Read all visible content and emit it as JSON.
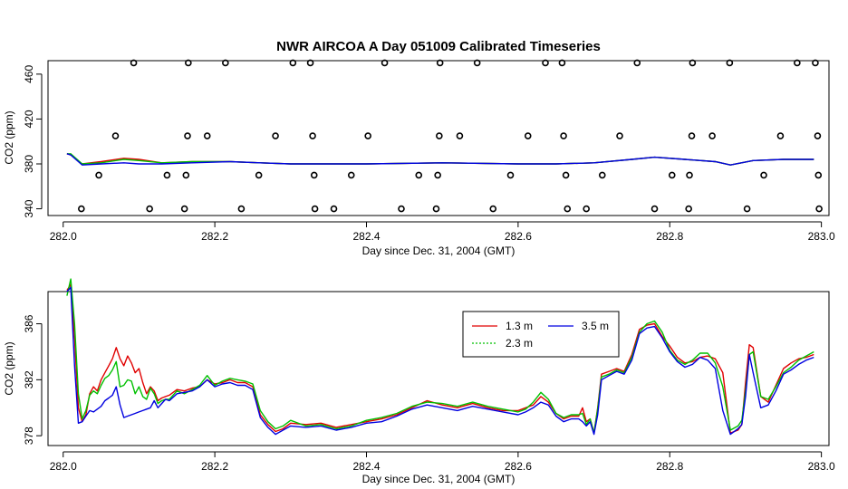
{
  "chart_data": [
    {
      "type": "scatter",
      "title": "NWR AIRCOA A  Day 051009  Calibrated Timeseries",
      "xlabel": "Day since Dec. 31, 2004 (GMT)",
      "ylabel": "CO2 (ppm)",
      "xlim": [
        281.98,
        283.01
      ],
      "ylim": [
        334,
        472
      ],
      "xticks": [
        282.0,
        282.2,
        282.4,
        282.6,
        282.8,
        283.0
      ],
      "xtick_labels": [
        "282.0",
        "282.2",
        "282.4",
        "282.6",
        "282.8",
        "283.0"
      ],
      "yticks": [
        340,
        380,
        420,
        460
      ],
      "ytick_labels": [
        "340",
        "380",
        "420",
        "460"
      ],
      "grid": false,
      "points": [
        {
          "x": 282.093,
          "y": 470
        },
        {
          "x": 282.165,
          "y": 470
        },
        {
          "x": 282.214,
          "y": 470
        },
        {
          "x": 282.303,
          "y": 470
        },
        {
          "x": 282.326,
          "y": 470
        },
        {
          "x": 282.424,
          "y": 470
        },
        {
          "x": 282.497,
          "y": 470
        },
        {
          "x": 282.546,
          "y": 470
        },
        {
          "x": 282.636,
          "y": 470
        },
        {
          "x": 282.658,
          "y": 470
        },
        {
          "x": 282.757,
          "y": 470
        },
        {
          "x": 282.83,
          "y": 470
        },
        {
          "x": 282.879,
          "y": 470
        },
        {
          "x": 282.968,
          "y": 470
        },
        {
          "x": 282.992,
          "y": 470
        },
        {
          "x": 282.069,
          "y": 405
        },
        {
          "x": 282.164,
          "y": 405
        },
        {
          "x": 282.19,
          "y": 405
        },
        {
          "x": 282.28,
          "y": 405
        },
        {
          "x": 282.329,
          "y": 405
        },
        {
          "x": 282.402,
          "y": 405
        },
        {
          "x": 282.496,
          "y": 405
        },
        {
          "x": 282.523,
          "y": 405
        },
        {
          "x": 282.613,
          "y": 405
        },
        {
          "x": 282.66,
          "y": 405
        },
        {
          "x": 282.734,
          "y": 405
        },
        {
          "x": 282.829,
          "y": 405
        },
        {
          "x": 282.856,
          "y": 405
        },
        {
          "x": 282.946,
          "y": 405
        },
        {
          "x": 282.995,
          "y": 405
        },
        {
          "x": 282.047,
          "y": 370
        },
        {
          "x": 282.137,
          "y": 370
        },
        {
          "x": 282.162,
          "y": 370
        },
        {
          "x": 282.258,
          "y": 370
        },
        {
          "x": 282.331,
          "y": 370
        },
        {
          "x": 282.38,
          "y": 370
        },
        {
          "x": 282.469,
          "y": 370
        },
        {
          "x": 282.494,
          "y": 370
        },
        {
          "x": 282.59,
          "y": 370
        },
        {
          "x": 282.663,
          "y": 370
        },
        {
          "x": 282.711,
          "y": 370
        },
        {
          "x": 282.803,
          "y": 370
        },
        {
          "x": 282.826,
          "y": 370
        },
        {
          "x": 282.924,
          "y": 370
        },
        {
          "x": 282.996,
          "y": 370
        },
        {
          "x": 282.024,
          "y": 340
        },
        {
          "x": 282.114,
          "y": 340
        },
        {
          "x": 282.16,
          "y": 340
        },
        {
          "x": 282.235,
          "y": 340
        },
        {
          "x": 282.332,
          "y": 340
        },
        {
          "x": 282.357,
          "y": 340
        },
        {
          "x": 282.446,
          "y": 340
        },
        {
          "x": 282.492,
          "y": 340
        },
        {
          "x": 282.567,
          "y": 340
        },
        {
          "x": 282.665,
          "y": 340
        },
        {
          "x": 282.69,
          "y": 340
        },
        {
          "x": 282.78,
          "y": 340
        },
        {
          "x": 282.825,
          "y": 340
        },
        {
          "x": 282.902,
          "y": 340
        },
        {
          "x": 282.997,
          "y": 340
        }
      ],
      "series": [
        {
          "color": "#e00000",
          "x": [
            282.005,
            282.01,
            282.025,
            282.05,
            282.08,
            282.1,
            282.13,
            282.17,
            282.22,
            282.26,
            282.3,
            282.4,
            282.5,
            282.6,
            282.65,
            282.7,
            282.75,
            282.78,
            282.82,
            282.86,
            282.88,
            282.91,
            282.95,
            282.99
          ],
          "values": [
            389,
            388,
            380,
            382,
            385,
            384,
            381,
            382,
            382,
            381,
            380,
            380,
            381,
            380,
            380,
            381,
            384,
            386,
            384,
            382,
            379,
            383,
            384,
            384
          ]
        },
        {
          "color": "#00c000",
          "x": [
            282.005,
            282.01,
            282.025,
            282.05,
            282.08,
            282.1,
            282.13,
            282.17,
            282.22,
            282.26,
            282.3,
            282.4,
            282.5,
            282.6,
            282.65,
            282.7,
            282.75,
            282.78,
            282.82,
            282.86,
            282.88,
            282.91,
            282.95,
            282.99
          ],
          "values": [
            389,
            389,
            380,
            381,
            384,
            383,
            381,
            382,
            382,
            381,
            380,
            380,
            381,
            380,
            380,
            381,
            384,
            386,
            384,
            382,
            379,
            383,
            384,
            384
          ]
        },
        {
          "color": "#0000e0",
          "x": [
            282.005,
            282.01,
            282.025,
            282.05,
            282.08,
            282.1,
            282.13,
            282.17,
            282.22,
            282.26,
            282.3,
            282.4,
            282.5,
            282.6,
            282.65,
            282.7,
            282.75,
            282.78,
            282.82,
            282.86,
            282.88,
            282.91,
            282.95,
            282.99
          ],
          "values": [
            389,
            388,
            379,
            380,
            381,
            380,
            380,
            381,
            382,
            381,
            380,
            380,
            381,
            380,
            380,
            381,
            384,
            386,
            384,
            382,
            379,
            383,
            384,
            384
          ]
        }
      ]
    },
    {
      "type": "line",
      "xlabel": "Day since Dec. 31, 2004 (GMT)",
      "ylabel": "CO2 (ppm)",
      "xlim": [
        281.98,
        283.01
      ],
      "ylim": [
        377.3,
        388.3
      ],
      "xticks": [
        282.0,
        282.2,
        282.4,
        282.6,
        282.8,
        283.0
      ],
      "xtick_labels": [
        "282.0",
        "282.2",
        "282.4",
        "282.6",
        "282.8",
        "283.0"
      ],
      "yticks": [
        378,
        382,
        386
      ],
      "ytick_labels": [
        "378",
        "382",
        "386"
      ],
      "grid": false,
      "legend_position": "top-right",
      "x": [
        282.005,
        282.01,
        282.015,
        282.02,
        282.025,
        282.03,
        282.035,
        282.04,
        282.045,
        282.05,
        282.055,
        282.06,
        282.065,
        282.07,
        282.075,
        282.08,
        282.085,
        282.09,
        282.095,
        282.1,
        282.105,
        282.11,
        282.115,
        282.12,
        282.125,
        282.13,
        282.135,
        282.14,
        282.15,
        282.16,
        282.17,
        282.18,
        282.19,
        282.2,
        282.21,
        282.22,
        282.23,
        282.24,
        282.25,
        282.26,
        282.27,
        282.28,
        282.29,
        282.3,
        282.32,
        282.34,
        282.36,
        282.38,
        282.4,
        282.42,
        282.44,
        282.46,
        282.48,
        282.5,
        282.52,
        282.54,
        282.56,
        282.58,
        282.6,
        282.61,
        282.62,
        282.63,
        282.64,
        282.65,
        282.66,
        282.67,
        282.68,
        282.685,
        282.69,
        282.695,
        282.7,
        282.705,
        282.71,
        282.72,
        282.73,
        282.74,
        282.75,
        282.76,
        282.77,
        282.78,
        282.79,
        282.8,
        282.81,
        282.82,
        282.83,
        282.84,
        282.85,
        282.86,
        282.87,
        282.88,
        282.89,
        282.895,
        282.9,
        282.905,
        282.91,
        282.92,
        282.93,
        282.94,
        282.95,
        282.96,
        282.97,
        282.98,
        282.99
      ],
      "series": [
        {
          "name": "1.3 m",
          "color": "#e00000",
          "values": [
            388.4,
            388.8,
            385.0,
            380.0,
            379.0,
            379.5,
            381.0,
            381.5,
            381.2,
            382.0,
            382.5,
            383.0,
            383.5,
            384.3,
            383.5,
            383.0,
            383.7,
            383.2,
            382.5,
            382.8,
            381.8,
            381.0,
            381.5,
            381.2,
            380.5,
            380.7,
            380.8,
            380.9,
            381.3,
            381.2,
            381.4,
            381.5,
            382.0,
            381.7,
            381.8,
            382.0,
            381.8,
            381.8,
            381.5,
            379.5,
            378.8,
            378.3,
            378.5,
            378.9,
            378.8,
            378.9,
            378.6,
            378.8,
            379.0,
            379.2,
            379.5,
            380.0,
            380.5,
            380.2,
            380.0,
            380.3,
            380.0,
            379.8,
            379.8,
            380.0,
            380.2,
            380.8,
            380.4,
            379.6,
            379.2,
            379.4,
            379.4,
            380.0,
            379.0,
            379.2,
            378.2,
            380.0,
            382.4,
            382.6,
            382.8,
            382.6,
            383.8,
            385.6,
            385.9,
            386.0,
            385.1,
            384.4,
            383.6,
            383.2,
            383.3,
            383.6,
            383.7,
            383.5,
            382.5,
            378.2,
            378.4,
            378.8,
            381.8,
            384.5,
            384.3,
            380.8,
            380.4,
            381.6,
            382.8,
            383.2,
            383.5,
            383.6,
            383.8
          ]
        },
        {
          "name": "2.3 m",
          "color": "#00c000",
          "values": [
            388.0,
            389.2,
            386.0,
            381.0,
            379.2,
            379.8,
            380.9,
            381.2,
            381.0,
            381.6,
            382.1,
            382.3,
            382.7,
            383.3,
            381.5,
            381.6,
            382.0,
            381.9,
            381.0,
            381.5,
            380.8,
            380.6,
            381.4,
            381.0,
            380.3,
            380.5,
            380.6,
            380.6,
            381.2,
            381.0,
            381.3,
            381.6,
            382.3,
            381.6,
            381.9,
            382.1,
            382.0,
            381.9,
            381.7,
            379.8,
            379.0,
            378.5,
            378.7,
            379.1,
            378.7,
            378.8,
            378.5,
            378.7,
            379.1,
            379.3,
            379.6,
            380.1,
            380.4,
            380.3,
            380.1,
            380.4,
            380.1,
            379.9,
            379.7,
            379.9,
            380.4,
            381.1,
            380.6,
            379.6,
            379.3,
            379.5,
            379.5,
            379.6,
            378.8,
            379.2,
            378.2,
            379.9,
            382.2,
            382.4,
            382.7,
            382.5,
            383.6,
            385.4,
            386.0,
            386.2,
            385.4,
            384.1,
            383.4,
            383.1,
            383.4,
            383.9,
            383.9,
            383.2,
            381.5,
            378.4,
            378.7,
            379.1,
            381.2,
            383.8,
            384.0,
            380.8,
            380.6,
            381.5,
            382.5,
            382.9,
            383.4,
            383.7,
            384.0
          ]
        },
        {
          "name": "3.5 m",
          "color": "#0000e0",
          "values": [
            388.3,
            388.6,
            383.0,
            378.9,
            379.0,
            379.4,
            379.8,
            379.7,
            379.9,
            380.1,
            380.5,
            380.7,
            380.9,
            381.5,
            380.2,
            379.3,
            379.4,
            379.5,
            379.6,
            379.7,
            379.8,
            379.9,
            380.0,
            380.5,
            380.0,
            380.3,
            380.6,
            380.5,
            381.0,
            381.1,
            381.2,
            381.5,
            382.0,
            381.5,
            381.7,
            381.8,
            381.6,
            381.6,
            381.3,
            379.3,
            378.6,
            378.1,
            378.4,
            378.7,
            378.6,
            378.7,
            378.4,
            378.6,
            378.9,
            379.0,
            379.4,
            379.9,
            380.2,
            380.0,
            379.8,
            380.1,
            379.9,
            379.7,
            379.5,
            379.7,
            380.0,
            380.4,
            380.2,
            379.4,
            379.0,
            379.2,
            379.2,
            379.0,
            378.7,
            379.0,
            378.1,
            379.5,
            382.0,
            382.3,
            382.6,
            382.4,
            383.4,
            385.3,
            385.7,
            385.8,
            385.0,
            384.0,
            383.3,
            382.9,
            383.1,
            383.6,
            383.4,
            382.8,
            379.8,
            378.1,
            378.5,
            378.8,
            380.8,
            383.8,
            382.5,
            380.0,
            380.2,
            381.2,
            382.4,
            382.7,
            383.1,
            383.4,
            383.6
          ]
        }
      ]
    }
  ]
}
